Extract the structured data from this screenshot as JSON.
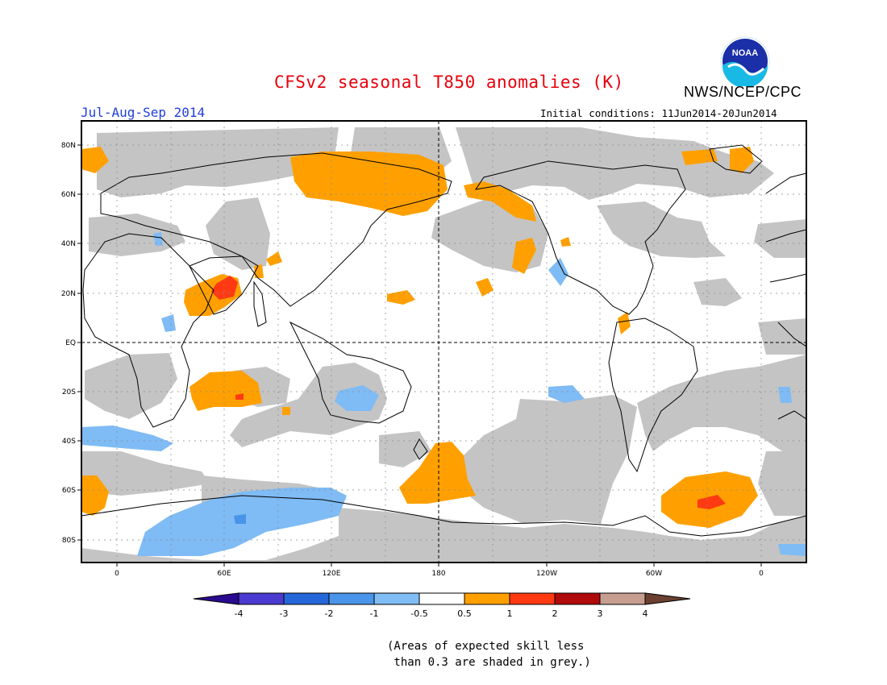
{
  "header": {
    "title": "CFSv2 seasonal T850 anomalies (K)",
    "agency": "NWS/NCEP/CPC",
    "logo_text": "NOAA",
    "season": "Jul-Aug-Sep 2014",
    "initial_conditions": "Initial conditions: 11Jun2014-20Jun2014"
  },
  "map": {
    "lat_labels": [
      "80N",
      "60N",
      "40N",
      "20N",
      "EQ",
      "20S",
      "40S",
      "60S",
      "80S"
    ],
    "lon_labels": [
      "0",
      "60E",
      "120E",
      "180",
      "120W",
      "60W",
      "0"
    ]
  },
  "colorbar": {
    "ticks": [
      "-4",
      "-3",
      "-2",
      "-1",
      "-0.5",
      "0.5",
      "1",
      "2",
      "3",
      "4"
    ],
    "colors": [
      "#2a0b8f",
      "#4b3ad0",
      "#2567d8",
      "#4a95ea",
      "#80bdf5",
      "#ffffff",
      "#ff9f00",
      "#ff3a13",
      "#b00a0a",
      "#c69e90",
      "#6b4030"
    ]
  },
  "anomaly_colors": {
    "grey_low_skill": "#c4c4c4",
    "light_blue": "#7fbbf4",
    "mid_blue": "#4a93ea",
    "orange": "#ffa000",
    "red_orange": "#ff3a13"
  },
  "footnote": {
    "line1": "(Areas of expected skill less",
    "line2": " than 0.3 are shaded in grey.)"
  }
}
